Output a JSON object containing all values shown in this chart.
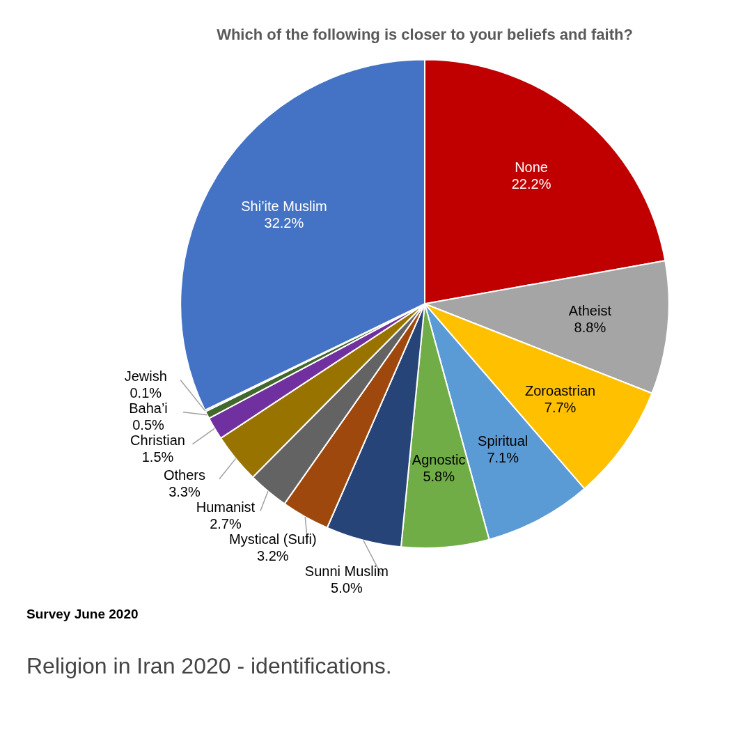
{
  "chart_data": {
    "type": "pie",
    "title": "Which of the following is closer to your beliefs and faith?",
    "categories": [
      "None",
      "Atheist",
      "Zoroastrian",
      "Spiritual",
      "Agnostic",
      "Sunni Muslim",
      "Mystical (Sufi)",
      "Humanist",
      "Others",
      "Christian",
      "Baha’i",
      "Jewish",
      "Shi’ite Muslim"
    ],
    "values": [
      22.2,
      8.8,
      7.7,
      7.1,
      5.8,
      5.0,
      3.2,
      2.7,
      3.3,
      1.5,
      0.5,
      0.1,
      32.2
    ],
    "colors": [
      "#c00000",
      "#a5a5a5",
      "#ffc000",
      "#5b9bd5",
      "#70ad47",
      "#264478",
      "#9e480e",
      "#636363",
      "#997300",
      "#7030a0",
      "#43682b",
      "#2e4a87",
      "#4472c4"
    ],
    "value_labels": [
      "22.2%",
      "8.8%",
      "7.7%",
      "7.1%",
      "5.8%",
      "5.0%",
      "3.2%",
      "2.7%",
      "3.3%",
      "1.5%",
      "0.5%",
      "0.1%",
      "32.2%"
    ],
    "legend": false,
    "annotations": [
      "Survey June 2020",
      "Religion in Iran 2020 - identifications."
    ]
  }
}
